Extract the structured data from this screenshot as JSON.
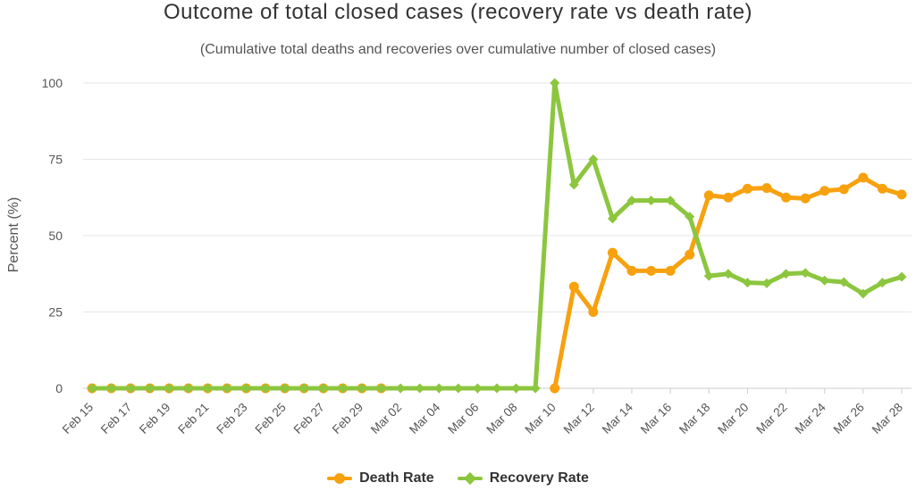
{
  "chart_data": {
    "type": "line",
    "title": "Outcome of total closed cases (recovery rate vs death rate)",
    "subtitle": "(Cumulative total deaths and recoveries over cumulative number of closed cases)",
    "ylabel": "Percent (%)",
    "xlabel": "",
    "ylim": [
      0,
      100
    ],
    "yticks": [
      0,
      25,
      50,
      75,
      100
    ],
    "grid": true,
    "legend_position": "bottom-center",
    "categories": [
      "Feb 15",
      "Feb 16",
      "Feb 17",
      "Feb 18",
      "Feb 19",
      "Feb 20",
      "Feb 21",
      "Feb 22",
      "Feb 23",
      "Feb 24",
      "Feb 25",
      "Feb 26",
      "Feb 27",
      "Feb 28",
      "Feb 29",
      "Mar 01",
      "Mar 02",
      "Mar 03",
      "Mar 04",
      "Mar 05",
      "Mar 06",
      "Mar 07",
      "Mar 08",
      "Mar 09",
      "Mar 10",
      "Mar 11",
      "Mar 12",
      "Mar 13",
      "Mar 14",
      "Mar 15",
      "Mar 16",
      "Mar 17",
      "Mar 18",
      "Mar 19",
      "Mar 20",
      "Mar 21",
      "Mar 22",
      "Mar 23",
      "Mar 24",
      "Mar 25",
      "Mar 26",
      "Mar 27",
      "Mar 28"
    ],
    "xtick_labels": [
      "Feb 15",
      "Feb 17",
      "Feb 19",
      "Feb 21",
      "Feb 23",
      "Feb 25",
      "Feb 27",
      "Feb 29",
      "Mar 02",
      "Mar 04",
      "Mar 06",
      "Mar 08",
      "Mar 10",
      "Mar 12",
      "Mar 14",
      "Mar 16",
      "Mar 18",
      "Mar 20",
      "Mar 22",
      "Mar 24",
      "Mar 26",
      "Mar 28"
    ],
    "series": [
      {
        "name": "Death Rate",
        "color": "#f7a10f",
        "marker": "circle",
        "values": [
          0,
          0,
          0,
          0,
          0,
          0,
          0,
          0,
          0,
          0,
          0,
          0,
          0,
          0,
          0,
          0,
          null,
          null,
          null,
          null,
          null,
          null,
          null,
          null,
          0,
          33.3,
          25,
          44.4,
          38.5,
          38.5,
          38.5,
          43.8,
          63.2,
          62.5,
          65.4,
          65.6,
          62.5,
          62.2,
          64.7,
          65.2,
          69,
          65.4,
          63.5
        ]
      },
      {
        "name": "Recovery Rate",
        "color": "#8cc63f",
        "marker": "diamond",
        "values": [
          0,
          0,
          0,
          0,
          0,
          0,
          0,
          0,
          0,
          0,
          0,
          0,
          0,
          0,
          0,
          0,
          0,
          0,
          0,
          0,
          0,
          0,
          0,
          0,
          100,
          66.7,
          75,
          55.6,
          61.5,
          61.5,
          61.5,
          56.2,
          36.8,
          37.5,
          34.6,
          34.4,
          37.5,
          37.8,
          35.3,
          34.8,
          31,
          34.6,
          36.5
        ]
      }
    ]
  }
}
